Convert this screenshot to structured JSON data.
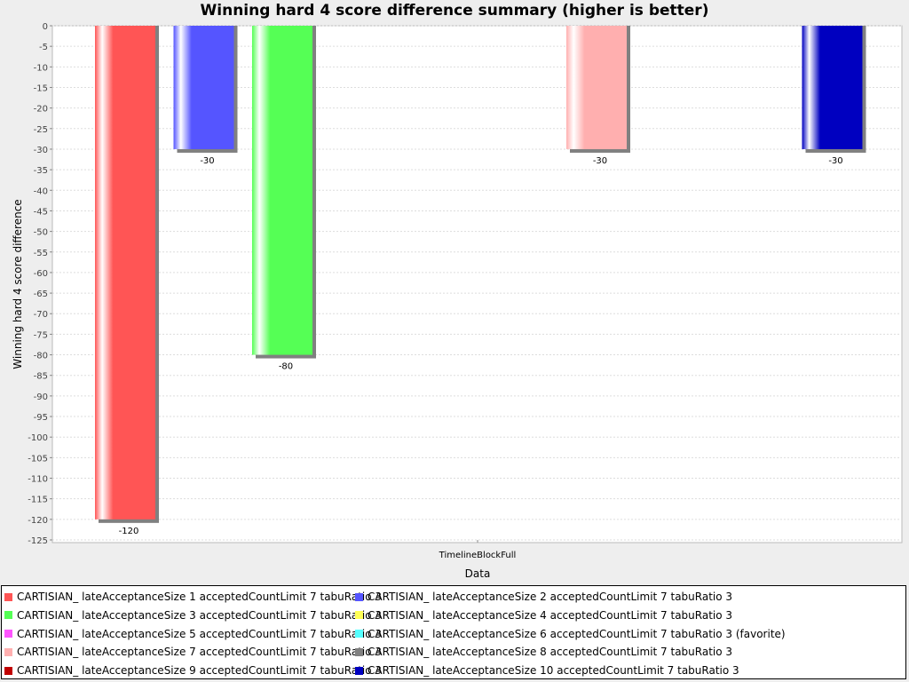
{
  "chart_data": {
    "type": "bar",
    "title": "Winning hard 4 score difference summary (higher is better)",
    "xlabel": "Data",
    "ylabel": "Winning hard 4 score difference",
    "categories": [
      "TimelineBlockFull"
    ],
    "ylim": [
      -125,
      0
    ],
    "ytick_step": 5,
    "grid": true,
    "legend_position": "bottom",
    "series": [
      {
        "name": "CARTISIAN_ lateAcceptanceSize 1 acceptedCountLimit 7 tabuRatio 3",
        "values": [
          -120
        ],
        "label": "-120",
        "color": "#ff5555"
      },
      {
        "name": "CARTISIAN_ lateAcceptanceSize 2 acceptedCountLimit 7 tabuRatio 3",
        "values": [
          -30
        ],
        "label": "-30",
        "color": "#5555ff"
      },
      {
        "name": "CARTISIAN_ lateAcceptanceSize 3 acceptedCountLimit 7 tabuRatio 3",
        "values": [
          -80
        ],
        "label": "-80",
        "color": "#55ff55"
      },
      {
        "name": "CARTISIAN_ lateAcceptanceSize 4 acceptedCountLimit 7 tabuRatio 3",
        "values": [
          0
        ],
        "label": "",
        "color": "#ffff55"
      },
      {
        "name": "CARTISIAN_ lateAcceptanceSize 5 acceptedCountLimit 7 tabuRatio 3",
        "values": [
          0
        ],
        "label": "",
        "color": "#ff55ff"
      },
      {
        "name": "CARTISIAN_ lateAcceptanceSize 6 acceptedCountLimit 7 tabuRatio 3 (favorite)",
        "values": [
          0
        ],
        "label": "",
        "color": "#55ffff"
      },
      {
        "name": "CARTISIAN_ lateAcceptanceSize 7 acceptedCountLimit 7 tabuRatio 3",
        "values": [
          -30
        ],
        "label": "-30",
        "color": "#ffafaf"
      },
      {
        "name": "CARTISIAN_ lateAcceptanceSize 8 acceptedCountLimit 7 tabuRatio 3",
        "values": [
          0
        ],
        "label": "",
        "color": "#808080"
      },
      {
        "name": "CARTISIAN_ lateAcceptanceSize 9 acceptedCountLimit 7 tabuRatio 3",
        "values": [
          0
        ],
        "label": "",
        "color": "#c00000"
      },
      {
        "name": "CARTISIAN_ lateAcceptanceSize 10 acceptedCountLimit 7 tabuRatio 3",
        "values": [
          -30
        ],
        "label": "-30",
        "color": "#0000c0"
      }
    ]
  }
}
